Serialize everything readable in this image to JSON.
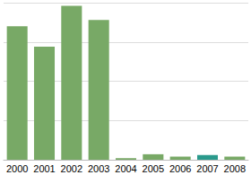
{
  "chart_data": {
    "type": "bar",
    "categories": [
      "2000",
      "2001",
      "2002",
      "2003",
      "2004",
      "2005",
      "2006",
      "2007",
      "2008"
    ],
    "values": [
      85,
      72,
      98,
      89,
      1,
      3.5,
      2,
      3,
      2
    ],
    "colors": [
      "#78a966",
      "#78a966",
      "#78a966",
      "#78a966",
      "#78a966",
      "#78a966",
      "#78a966",
      "#2a9a8c",
      "#78a966"
    ],
    "ylim": [
      0,
      100
    ],
    "yticks": [
      0,
      25,
      50,
      75,
      100
    ],
    "grid": true,
    "tick_labels": "x"
  }
}
